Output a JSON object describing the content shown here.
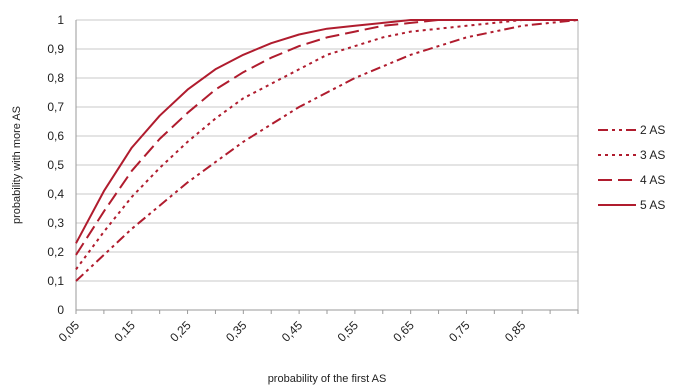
{
  "chart_data": {
    "type": "line",
    "title": "",
    "xlabel": "probability of the first AS",
    "ylabel": "probability with more AS",
    "x": [
      0.05,
      0.1,
      0.15,
      0.2,
      0.25,
      0.3,
      0.35,
      0.4,
      0.45,
      0.5,
      0.55,
      0.6,
      0.65,
      0.7,
      0.75,
      0.8,
      0.85,
      0.9,
      0.95
    ],
    "x_tick_labels": [
      "0,05",
      "0,15",
      "0,25",
      "0,35",
      "0,45",
      "0,55",
      "0,65",
      "0,75",
      "0,85"
    ],
    "y_tick_labels": [
      "0",
      "0,1",
      "0,2",
      "0,3",
      "0,4",
      "0,5",
      "0,6",
      "0,7",
      "0,8",
      "0,9",
      "1"
    ],
    "xlim": [
      0.05,
      0.95
    ],
    "ylim": [
      0,
      1
    ],
    "grid": true,
    "legend_position": "right",
    "series": [
      {
        "name": "2 AS",
        "dash": "dash-dot-dot",
        "values": [
          0.1,
          0.19,
          0.28,
          0.36,
          0.44,
          0.51,
          0.58,
          0.64,
          0.7,
          0.75,
          0.8,
          0.84,
          0.88,
          0.91,
          0.94,
          0.96,
          0.98,
          0.99,
          1.0
        ]
      },
      {
        "name": "3 AS",
        "dash": "dotted",
        "values": [
          0.14,
          0.27,
          0.39,
          0.49,
          0.58,
          0.66,
          0.73,
          0.78,
          0.83,
          0.88,
          0.91,
          0.94,
          0.96,
          0.97,
          0.98,
          0.99,
          1.0,
          1.0,
          1.0
        ]
      },
      {
        "name": "4 AS",
        "dash": "long-dash",
        "values": [
          0.19,
          0.34,
          0.48,
          0.59,
          0.68,
          0.76,
          0.82,
          0.87,
          0.91,
          0.94,
          0.96,
          0.98,
          0.99,
          1.0,
          1.0,
          1.0,
          1.0,
          1.0,
          1.0
        ]
      },
      {
        "name": "5 AS",
        "dash": "solid",
        "values": [
          0.23,
          0.41,
          0.56,
          0.67,
          0.76,
          0.83,
          0.88,
          0.92,
          0.95,
          0.97,
          0.98,
          0.99,
          1.0,
          1.0,
          1.0,
          1.0,
          1.0,
          1.0,
          1.0
        ]
      }
    ],
    "line_color": "#b01c2e"
  }
}
